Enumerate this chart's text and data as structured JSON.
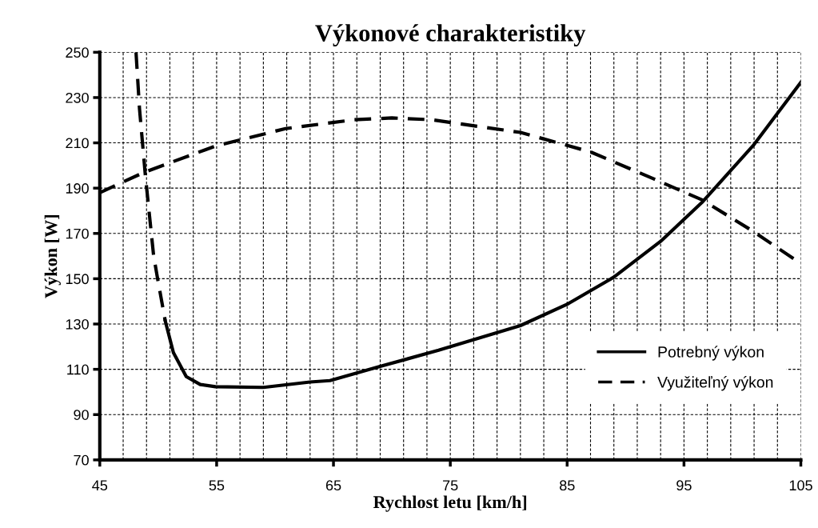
{
  "chart_data": {
    "type": "line",
    "title": "Výkonové charakteristiky",
    "xlabel": "Rychlost letu [km/h]",
    "ylabel": "Výkon [W]",
    "xlim": [
      45,
      105
    ],
    "ylim": [
      70,
      250
    ],
    "xticks": [
      45,
      {
        "value": 47,
        "label": null
      },
      {
        "value": 49,
        "label": null
      },
      {
        "value": 51,
        "label": null
      },
      {
        "value": 53,
        "label": null
      },
      55,
      {
        "value": 57,
        "label": null
      },
      {
        "value": 59,
        "label": null
      },
      {
        "value": 61,
        "label": null
      },
      {
        "value": 63,
        "label": null
      },
      65,
      {
        "value": 67,
        "label": null
      },
      {
        "value": 69,
        "label": null
      },
      {
        "value": 71,
        "label": null
      },
      {
        "value": 73,
        "label": null
      },
      75,
      {
        "value": 77,
        "label": null
      },
      {
        "value": 79,
        "label": null
      },
      {
        "value": 81,
        "label": null
      },
      {
        "value": 83,
        "label": null
      },
      85,
      {
        "value": 87,
        "label": null
      },
      {
        "value": 89,
        "label": null
      },
      {
        "value": 91,
        "label": null
      },
      {
        "value": 93,
        "label": null
      },
      95,
      {
        "value": 97,
        "label": null
      },
      {
        "value": 99,
        "label": null
      },
      {
        "value": 101,
        "label": null
      },
      {
        "value": 103,
        "label": null
      },
      105
    ],
    "yticks": [
      70,
      90,
      110,
      130,
      150,
      170,
      190,
      210,
      230,
      250
    ],
    "grid": true,
    "legend": "bottom right",
    "series": [
      {
        "name": "Potrebný výkon",
        "color": "#000000",
        "line_style": "solid",
        "x": [
          50.6,
          51.3,
          52.4,
          53.6,
          54.9,
          59,
          63,
          64.7,
          68.8,
          74,
          81,
          85.1,
          89,
          93,
          96.6,
          101,
          105
        ],
        "values": [
          131.4,
          117.4,
          106.8,
          103.3,
          102.3,
          102,
          104.4,
          105,
          111,
          118.4,
          129.3,
          139,
          150.7,
          166.5,
          184,
          209.3,
          236.7
        ]
      },
      {
        "name": "Využiteľný výkon",
        "color": "#000000",
        "line_style": "dashed",
        "x": [
          45,
          48.8,
          54.9,
          60.9,
          66.8,
          70,
          73.4,
          81,
          87,
          92.5,
          96.6,
          100.9,
          105
        ],
        "values": [
          188,
          197,
          208.6,
          216.3,
          220.2,
          221,
          220.2,
          214.6,
          206,
          193.9,
          184.7,
          171,
          156.7
        ]
      },
      {
        "color": "#000000",
        "line_style": "dashed",
        "x": [
          48.1,
          48.4,
          48.9,
          49.6,
          49.9,
          50.6
        ],
        "values": [
          250,
          225,
          195.6,
          160.5,
          151.4,
          131.4
        ]
      }
    ]
  }
}
